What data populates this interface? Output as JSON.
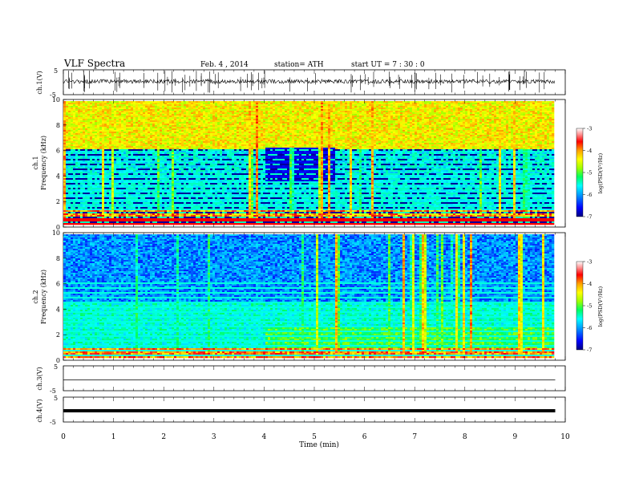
{
  "header": {
    "title": "VLF Spectra",
    "date": "Feb. 4 , 2014",
    "station": "station= ATH",
    "start": "start UT = 7 : 30 : 0"
  },
  "chart_data": [
    {
      "type": "line",
      "name": "ch1-waveform",
      "ylabel": "ch.1(V)",
      "ylim": [
        -5,
        5
      ],
      "yticks": [
        "5",
        "-5"
      ],
      "xlim": [
        0,
        10
      ],
      "x_extent": [
        0,
        9.8
      ]
    },
    {
      "type": "heatmap",
      "name": "ch1-spectrogram",
      "ylabel_channel": "ch.1",
      "ylabel": "Frequency (kHz)",
      "ylim": [
        0,
        10
      ],
      "yticks": [
        "0",
        "2",
        "4",
        "6",
        "8",
        "10"
      ],
      "xlim": [
        0,
        10
      ],
      "x_extent": [
        0,
        9.8
      ],
      "colorbar": {
        "label": "log(PSD(V²/Hz)",
        "range": [
          -7,
          -3
        ],
        "ticks": [
          "-3",
          "-4",
          "-5",
          "-6",
          "-7"
        ],
        "colors": [
          "#000080",
          "#0000ff",
          "#00a0ff",
          "#00ffff",
          "#00ff60",
          "#a0ff00",
          "#ffff00",
          "#ffa000",
          "#ff0000",
          "#ff9090",
          "#ffffff"
        ]
      }
    },
    {
      "type": "heatmap",
      "name": "ch2-spectrogram",
      "ylabel_channel": "ch.2",
      "ylabel": "Frequency (kHz)",
      "ylim": [
        0,
        10
      ],
      "yticks": [
        "0",
        "2",
        "4",
        "6",
        "8",
        "10"
      ],
      "xlim": [
        0,
        10
      ],
      "x_extent": [
        0,
        9.8
      ],
      "colorbar": {
        "label": "log(PSD(V²/Hz)",
        "range": [
          -7,
          -3
        ],
        "ticks": [
          "-3",
          "-4",
          "-5",
          "-6",
          "-7"
        ]
      }
    },
    {
      "type": "line",
      "name": "ch3-waveform",
      "ylabel": "ch.3(V)",
      "ylim": [
        -5,
        5
      ],
      "yticks": [
        "5",
        "-5"
      ],
      "xlim": [
        0,
        10
      ],
      "x_extent": [
        0,
        9.8
      ],
      "level": -0.6
    },
    {
      "type": "line",
      "name": "ch4-waveform",
      "ylabel": "ch.4(V)",
      "ylim": [
        -5,
        5
      ],
      "yticks": [
        "5",
        "-5"
      ],
      "xlim": [
        0,
        10
      ],
      "x_extent": [
        0,
        9.8
      ],
      "level": -0.5,
      "xlabel": "Time (min)",
      "xticks": [
        "0",
        "1",
        "2",
        "3",
        "4",
        "5",
        "6",
        "7",
        "8",
        "9",
        "10"
      ]
    }
  ]
}
